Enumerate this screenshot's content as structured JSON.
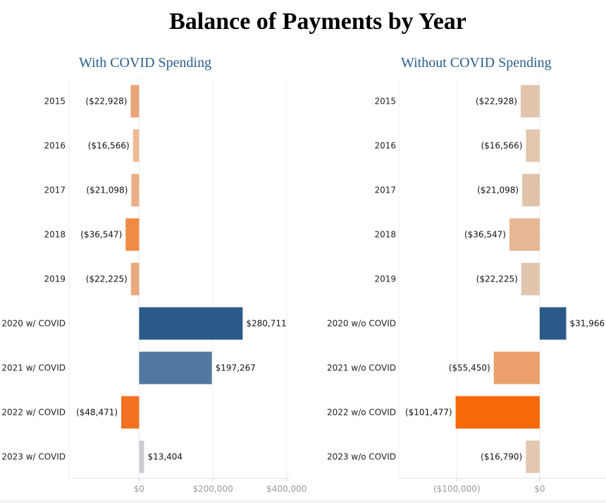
{
  "title": "Balance of Payments by Year",
  "chart_data": [
    {
      "type": "bar",
      "orientation": "horizontal",
      "title": "With COVID Spending",
      "categories": [
        "2015",
        "2016",
        "2017",
        "2018",
        "2019",
        "2020 w/ COVID",
        "2021 w/ COVID",
        "2022 w/ COVID",
        "2023 w/ COVID"
      ],
      "values": [
        -22928,
        -16566,
        -21098,
        -36547,
        -22225,
        280711,
        197267,
        -48471,
        13404
      ],
      "value_labels": [
        "($22,928)",
        "($16,566)",
        "($21,098)",
        "($36,547)",
        "($22,225)",
        "$280,711",
        "$197,267",
        "($48,471)",
        "$13,404"
      ],
      "colors": [
        "#eaa57a",
        "#eeb995",
        "#ebae86",
        "#f08b45",
        "#eaa87e",
        "#2b5a89",
        "#5179a0",
        "#f37021",
        "#c9ccd1"
      ],
      "xlim": [
        -190000,
        410000
      ],
      "xticks": [
        0,
        200000,
        400000
      ],
      "xtick_labels": [
        "$0",
        "$200,000",
        "$400,000"
      ]
    },
    {
      "type": "bar",
      "orientation": "horizontal",
      "title": "Without COVID Spending",
      "categories": [
        "2015",
        "2016",
        "2017",
        "2018",
        "2019",
        "2020 w/o COVID",
        "2021 w/o COVID",
        "2022 w/o COVID",
        "2023 w/o COVID"
      ],
      "values": [
        -22928,
        -16566,
        -21098,
        -36547,
        -22225,
        31966,
        -55450,
        -101477,
        -16790
      ],
      "value_labels": [
        "($22,928)",
        "($16,566)",
        "($21,098)",
        "($36,547)",
        "($22,225)",
        "$31,966",
        "($55,450)",
        "($101,477)",
        "($16,790)"
      ],
      "colors": [
        "#e1c5ad",
        "#e2c6ad",
        "#e1c3a9",
        "#e5b795",
        "#e1c5ad",
        "#2b5a89",
        "#eba06c",
        "#f5690a",
        "#e2c8b0"
      ],
      "xlim": [
        -170000,
        80000
      ],
      "xticks": [
        -100000,
        0
      ],
      "xtick_labels": [
        "($100,000)",
        "$0"
      ]
    }
  ]
}
